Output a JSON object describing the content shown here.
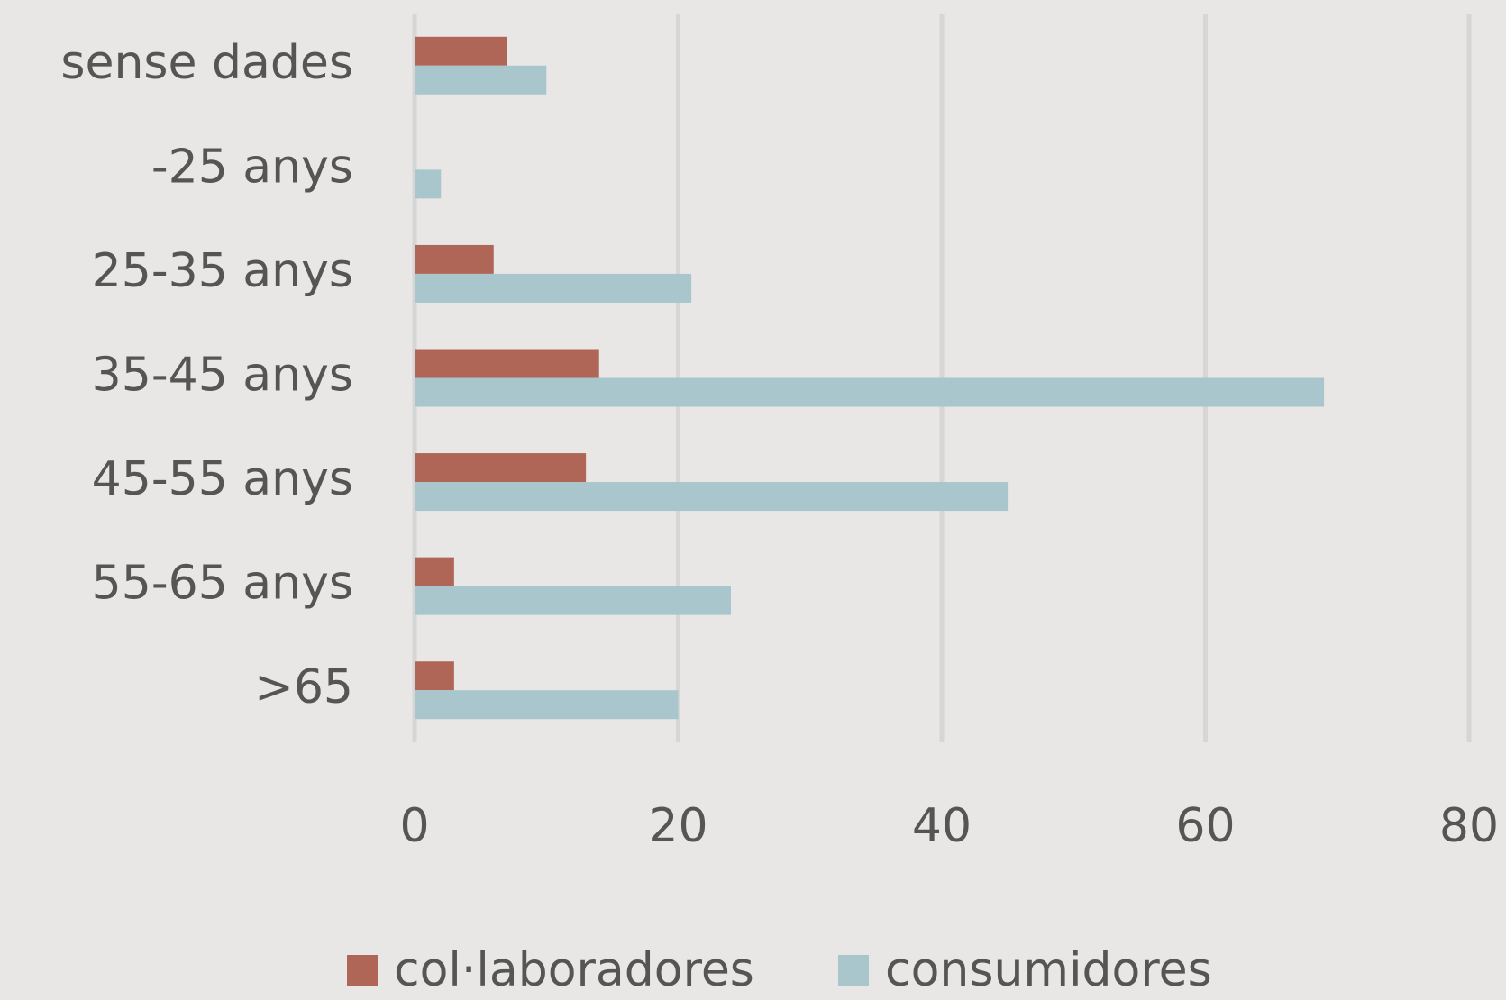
{
  "chart_data": {
    "type": "barh",
    "categories": [
      "sense dades",
      "-25 anys",
      "25-35 anys",
      "35-45 anys",
      "45-55 anys",
      "55-65 anys",
      ">65"
    ],
    "series": [
      {
        "name": "col·laboradores",
        "color": "#b06657",
        "values": [
          7,
          0,
          6,
          14,
          13,
          3,
          3
        ]
      },
      {
        "name": "consumidores",
        "color": "#a8c6cc",
        "values": [
          10,
          2,
          21,
          69,
          45,
          24,
          20
        ]
      }
    ],
    "xlim": [
      0,
      80
    ],
    "xticks": [
      0,
      20,
      40,
      60,
      80
    ],
    "grid": true,
    "legend": "bottom"
  }
}
